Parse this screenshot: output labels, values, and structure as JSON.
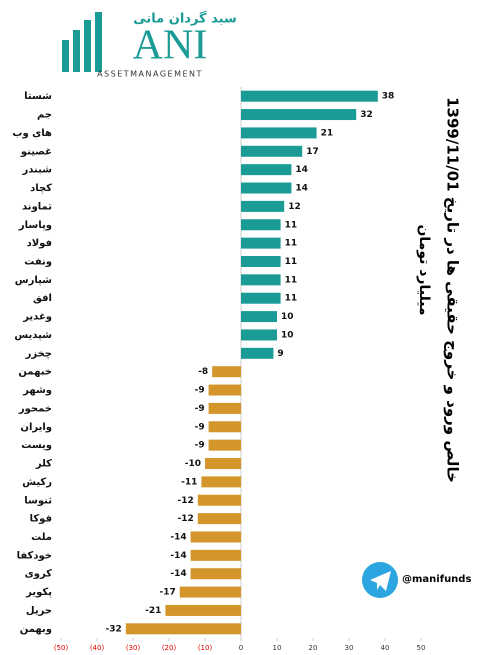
{
  "logo": {
    "persian": "سبد گردان مانی",
    "mark": "ANI",
    "tagline": "ASSETMANAGEMENT"
  },
  "watermark": "@manifunds",
  "chart_data": {
    "type": "hbar",
    "title": "خالص ورود و خروج حقیقی ها در تاریخ 1399/11/01",
    "subtitle": "میلیارد تومان",
    "categories": [
      "شستا",
      "جم",
      "های وب",
      "غصینو",
      "شبندر",
      "کچاد",
      "تماوند",
      "وپاسار",
      "فولاد",
      "ونفت",
      "شپارس",
      "افق",
      "وغدیر",
      "شپدیس",
      "چخزر",
      "خبهمن",
      "وشهر",
      "خمحور",
      "وایران",
      "ویست",
      "کلر",
      "رکیش",
      "ثنوسا",
      "فوکا",
      "ملت",
      "خودکفا",
      "کروی",
      "پکویر",
      "حریل",
      "وبهمن"
    ],
    "values": [
      38,
      32,
      21,
      17,
      14,
      14,
      12,
      11,
      11,
      11,
      11,
      11,
      10,
      10,
      9,
      -8,
      -9,
      -9,
      -9,
      -9,
      -10,
      -11,
      -12,
      -12,
      -14,
      -14,
      -14,
      -17,
      -21,
      -32
    ],
    "positive_color": "#1a9b96",
    "negative_color": "#d4962a",
    "xlim": [
      -50,
      50
    ],
    "xticks": [
      {
        "value": -50,
        "label": "(50)"
      },
      {
        "value": -40,
        "label": "(40)"
      },
      {
        "value": -30,
        "label": "(30)"
      },
      {
        "value": -20,
        "label": "(20)"
      },
      {
        "value": -10,
        "label": "(10)"
      },
      0,
      10,
      20,
      30,
      40,
      50
    ]
  }
}
